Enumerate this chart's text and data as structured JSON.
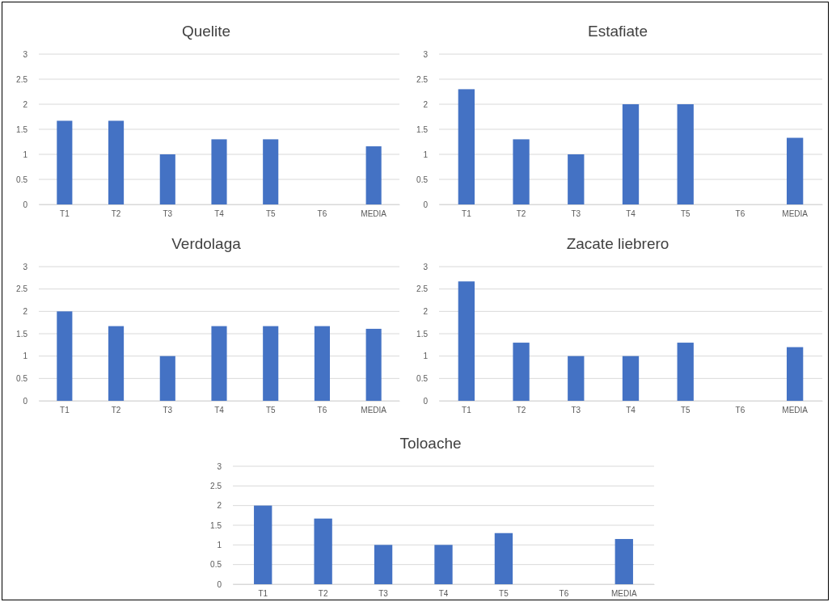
{
  "chart_data": [
    {
      "type": "bar",
      "title": "Quelite",
      "categories": [
        "T1",
        "T2",
        "T3",
        "T4",
        "T5",
        "T6",
        "MEDIA"
      ],
      "values": [
        1.67,
        1.67,
        1.0,
        1.3,
        1.3,
        0,
        1.16
      ],
      "color": "#4472c4",
      "ylim": [
        0,
        3
      ],
      "yticks": [
        0,
        0.5,
        1,
        1.5,
        2,
        2.5,
        3
      ],
      "grid": "y"
    },
    {
      "type": "bar",
      "title": "Estafiate",
      "categories": [
        "T1",
        "T2",
        "T3",
        "T4",
        "T5",
        "T6",
        "MEDIA"
      ],
      "values": [
        2.3,
        1.3,
        1.0,
        2.0,
        2.0,
        0,
        1.33
      ],
      "color": "#4472c4",
      "ylim": [
        0,
        3
      ],
      "yticks": [
        0,
        0.5,
        1,
        1.5,
        2,
        2.5,
        3
      ],
      "grid": "y"
    },
    {
      "type": "bar",
      "title": "Verdolaga",
      "categories": [
        "T1",
        "T2",
        "T3",
        "T4",
        "T5",
        "T6",
        "MEDIA"
      ],
      "values": [
        2.0,
        1.67,
        1.0,
        1.67,
        1.67,
        1.67,
        1.61
      ],
      "color": "#4472c4",
      "ylim": [
        0,
        3
      ],
      "yticks": [
        0,
        0.5,
        1,
        1.5,
        2,
        2.5,
        3
      ],
      "grid": "y"
    },
    {
      "type": "bar",
      "title": "Zacate liebrero",
      "categories": [
        "T1",
        "T2",
        "T3",
        "T4",
        "T5",
        "T6",
        "MEDIA"
      ],
      "values": [
        2.67,
        1.3,
        1.0,
        1.0,
        1.3,
        0,
        1.2
      ],
      "color": "#4472c4",
      "ylim": [
        0,
        3
      ],
      "yticks": [
        0,
        0.5,
        1,
        1.5,
        2,
        2.5,
        3
      ],
      "grid": "y"
    },
    {
      "type": "bar",
      "title": "Toloache",
      "categories": [
        "T1",
        "T2",
        "T3",
        "T4",
        "T5",
        "T6",
        "MEDIA"
      ],
      "values": [
        2.0,
        1.67,
        1.0,
        1.0,
        1.3,
        0,
        1.15
      ],
      "color": "#4472c4",
      "ylim": [
        0,
        3
      ],
      "yticks": [
        0,
        0.5,
        1,
        1.5,
        2,
        2.5,
        3
      ],
      "grid": "y"
    }
  ]
}
